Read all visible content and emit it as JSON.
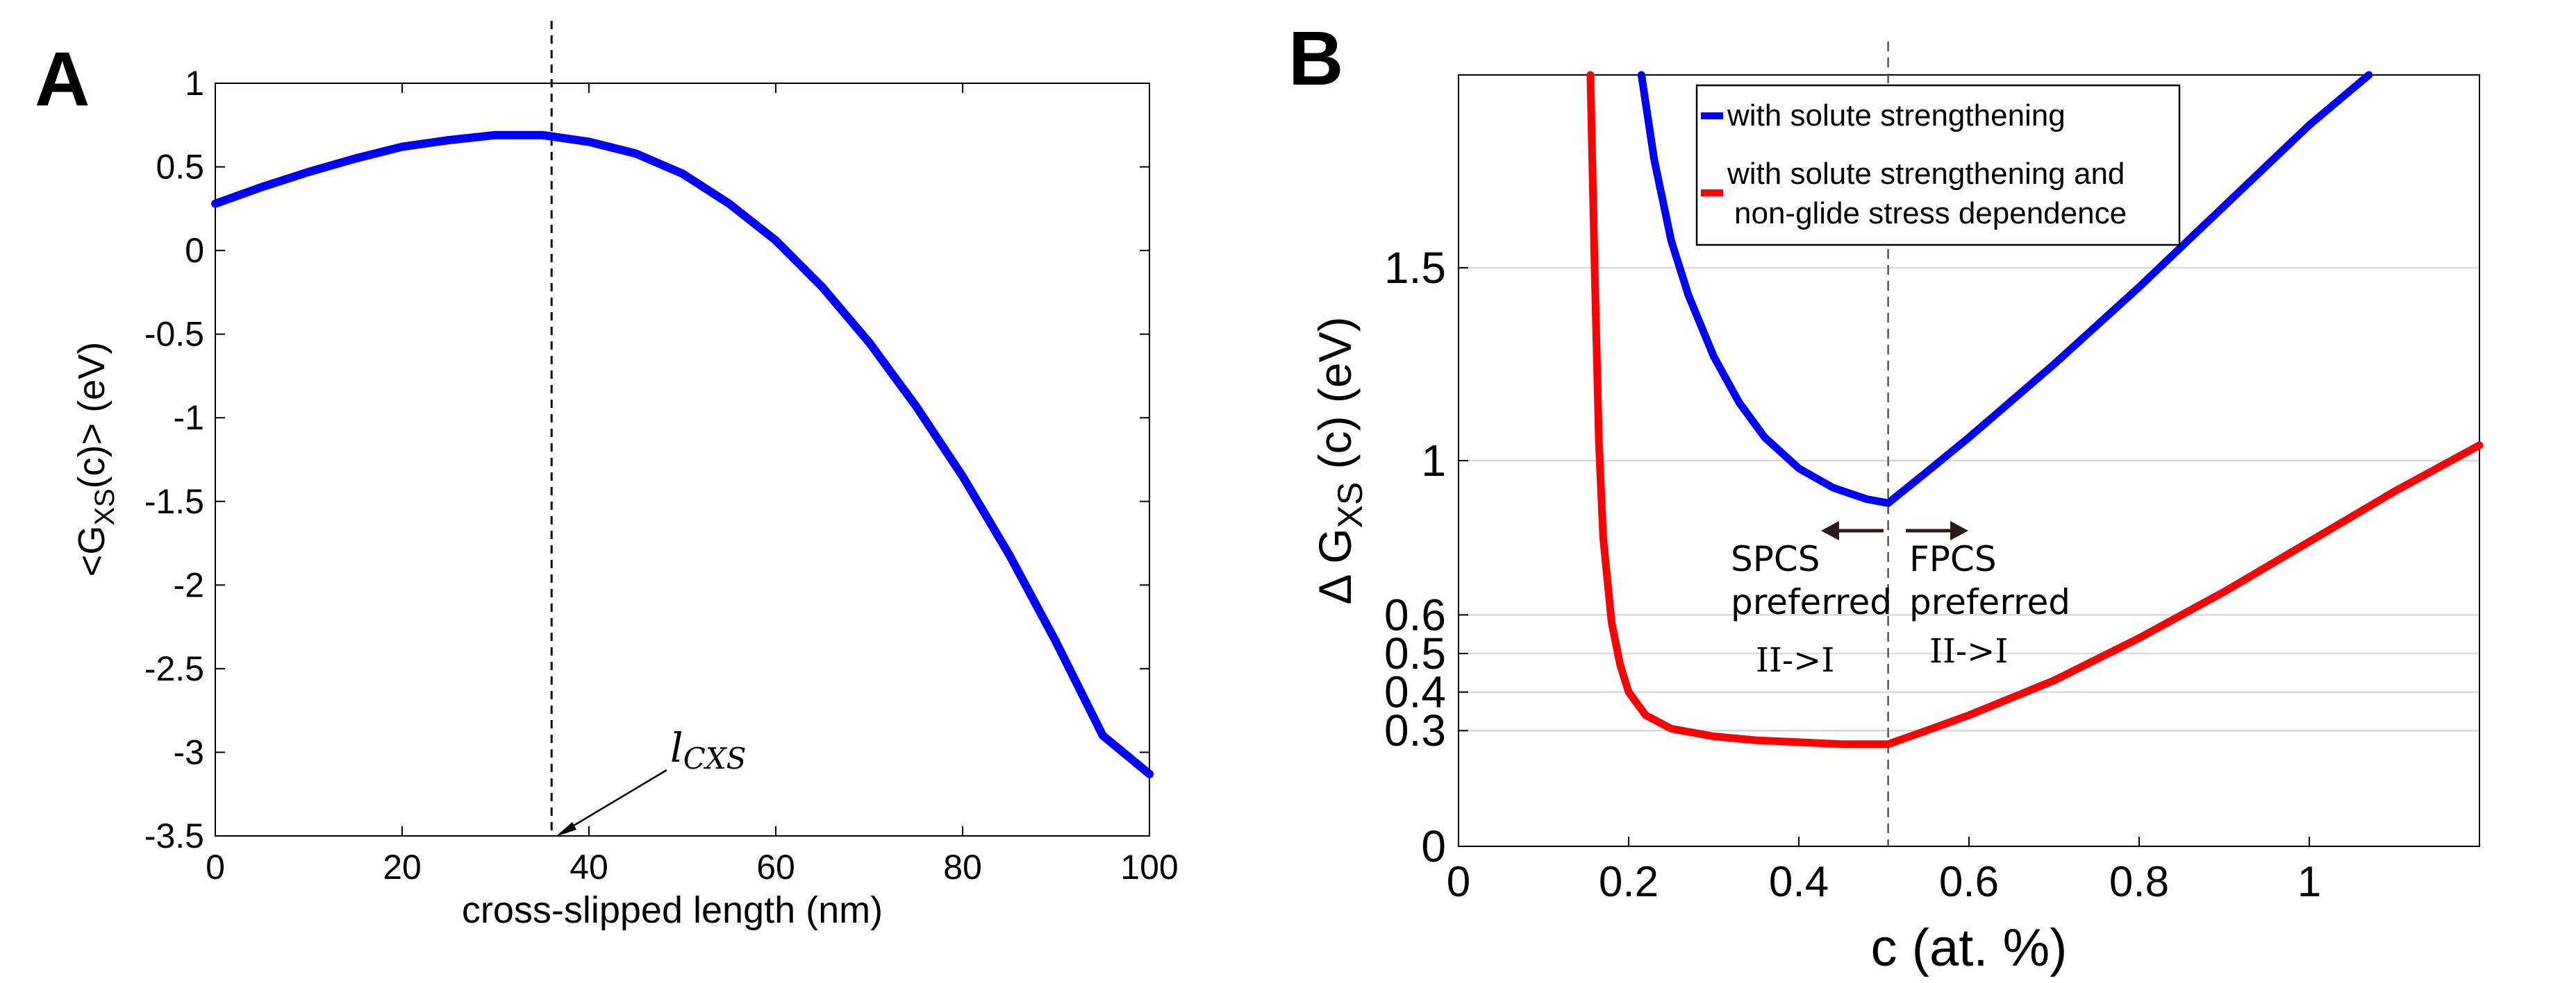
{
  "chart_data": [
    {
      "panel": "A",
      "type": "line",
      "title": "",
      "xlabel": "cross-slipped length (nm)",
      "ylabel_parts": [
        "<G",
        "XS",
        "(c)> (eV)"
      ],
      "xlim": [
        0,
        100
      ],
      "ylim": [
        -3.5,
        1
      ],
      "xticks": [
        0,
        20,
        40,
        60,
        80,
        100
      ],
      "yticks": [
        1,
        0.5,
        0,
        -0.5,
        -1,
        -1.5,
        -2,
        -2.5,
        -3,
        -3.5
      ],
      "grid": false,
      "series": [
        {
          "name": "<G_XS(c)>",
          "color": "#0000ff",
          "x": [
            0,
            5,
            10,
            15,
            20,
            25,
            30,
            35,
            40,
            45,
            50,
            55,
            60,
            65,
            70,
            75,
            80,
            85,
            90,
            95,
            100
          ],
          "y": [
            0.28,
            0.38,
            0.47,
            0.55,
            0.62,
            0.66,
            0.69,
            0.69,
            0.65,
            0.58,
            0.46,
            0.28,
            0.06,
            -0.22,
            -0.55,
            -0.93,
            -1.35,
            -1.82,
            -2.34,
            -2.9,
            -3.13
          ]
        }
      ],
      "vline_x": 36,
      "annotation": {
        "text_main": "l",
        "text_sub": "CXS",
        "target_x": 36,
        "target_y": -3.5
      }
    },
    {
      "panel": "B",
      "type": "line",
      "title": "",
      "xlabel": "c (at. %)",
      "ylabel_parts": [
        "Δ G",
        "XS",
        " (c) (eV)"
      ],
      "xlim": [
        0,
        1.2
      ],
      "ylim": [
        0,
        2.0
      ],
      "xticks": [
        0,
        0.2,
        0.4,
        0.6,
        0.8,
        1
      ],
      "xtick_labels": [
        "0",
        "0.2",
        "0.4",
        "0.6",
        "0.8",
        "1"
      ],
      "yticks": [
        0,
        0.3,
        0.4,
        0.5,
        0.6,
        1,
        1.5
      ],
      "ytick_labels": [
        "0",
        "0.3",
        "0.4",
        "0.5",
        "0.6",
        "1",
        "1.5"
      ],
      "ygrid": [
        0.3,
        0.4,
        0.5,
        0.6,
        1,
        1.5
      ],
      "grid": true,
      "legend_position": "top-right",
      "series": [
        {
          "name": "with solute strengthening",
          "color": "#0000ff",
          "x": [
            0.215,
            0.23,
            0.25,
            0.27,
            0.3,
            0.33,
            0.36,
            0.4,
            0.44,
            0.48,
            0.505,
            0.55,
            0.6,
            0.7,
            0.8,
            0.9,
            1.0,
            1.07
          ],
          "y": [
            2.0,
            1.78,
            1.57,
            1.43,
            1.27,
            1.15,
            1.06,
            0.98,
            0.93,
            0.9,
            0.89,
            0.97,
            1.06,
            1.25,
            1.45,
            1.66,
            1.87,
            2.0
          ]
        },
        {
          "name": "with solute strengthening and non-glide stress dependence",
          "legend_lines": [
            "with solute strengthening and",
            "non-glide stress dependence"
          ],
          "color": "#ff0000",
          "x": [
            0.155,
            0.16,
            0.165,
            0.17,
            0.18,
            0.19,
            0.2,
            0.22,
            0.25,
            0.3,
            0.35,
            0.4,
            0.45,
            0.505,
            0.55,
            0.6,
            0.7,
            0.8,
            0.9,
            1.0,
            1.1,
            1.2
          ],
          "y": [
            2.0,
            1.5,
            1.05,
            0.8,
            0.58,
            0.47,
            0.4,
            0.34,
            0.305,
            0.285,
            0.275,
            0.27,
            0.265,
            0.265,
            0.3,
            0.34,
            0.43,
            0.54,
            0.66,
            0.79,
            0.92,
            1.04
          ]
        }
      ],
      "vline_x": 0.505,
      "annotations": {
        "left_lines": [
          "SPCS",
          "preferred"
        ],
        "left_transition": "II->I",
        "right_lines": [
          "FPCS",
          "preferred"
        ],
        "right_transition": "II->I"
      }
    }
  ],
  "panel_labels": [
    "A",
    "B"
  ]
}
